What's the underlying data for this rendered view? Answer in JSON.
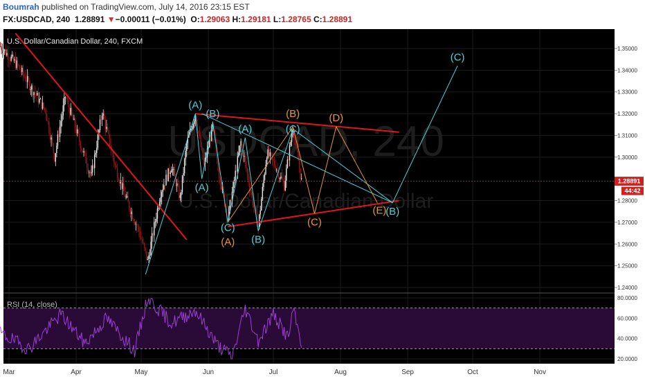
{
  "header": {
    "author": "Boumrah",
    "published_text": " published on TradingView.com, July 14, 2016 23:15 EST",
    "symbol": "FX:USDCAD, 240",
    "last": "1.28891",
    "down_arrow": "▼",
    "change": "−0.00011 (−0.01%)",
    "open_label": "O:",
    "open": "1.29063",
    "high_label": "H:",
    "high": "1.29181",
    "low_label": "L:",
    "low": "1.28765",
    "close_label": "C:",
    "close": "1.28891"
  },
  "chart": {
    "title": "U.S. Dollar/Canadian Dollar, 240, FXCM",
    "watermark_symbol": "USDCAD, 240",
    "watermark_name": "U.S. Dollar/Canadian Dollar",
    "price_tag": "1.28891",
    "timer_tag": "44:42",
    "rsi_label": "RSI (14, close)"
  },
  "colors": {
    "background": "#000000",
    "candle_up": "#e8e8e8",
    "candle_down": "#8b1a1a",
    "trendline": "#e0161a",
    "wave_cyan": "#4fd0dc",
    "wave_orange": "#e8962c",
    "rsi_line": "#9b3fd6",
    "rsi_band": "#2a0a36",
    "price_tag": "#cc2222"
  },
  "chart_data": [
    {
      "type": "candlestick",
      "symbol": "USDCAD",
      "timeframe": "240",
      "x_ticks": [
        "Mar",
        "Apr",
        "May",
        "Jun",
        "Jul",
        "Aug",
        "Sep",
        "Oct",
        "Nov"
      ],
      "y_ticks": [
        "1.35000",
        "1.34000",
        "1.33000",
        "1.32000",
        "1.31000",
        "1.30000",
        "1.28000",
        "1.27000",
        "1.26000",
        "1.25000",
        "1.24000"
      ],
      "y_range": [
        1.235,
        1.357
      ],
      "last_price": 1.28891,
      "price_path": [
        {
          "date": "2016-02-26",
          "price": 1.351
        },
        {
          "date": "2016-03-05",
          "price": 1.342
        },
        {
          "date": "2016-03-12",
          "price": 1.331
        },
        {
          "date": "2016-03-18",
          "price": 1.321
        },
        {
          "date": "2016-03-22",
          "price": 1.3
        },
        {
          "date": "2016-03-27",
          "price": 1.328
        },
        {
          "date": "2016-04-03",
          "price": 1.306
        },
        {
          "date": "2016-04-08",
          "price": 1.291
        },
        {
          "date": "2016-04-13",
          "price": 1.321
        },
        {
          "date": "2016-04-19",
          "price": 1.296
        },
        {
          "date": "2016-04-24",
          "price": 1.281
        },
        {
          "date": "2016-04-30",
          "price": 1.266
        },
        {
          "date": "2016-05-04",
          "price": 1.252
        },
        {
          "date": "2016-05-10",
          "price": 1.284
        },
        {
          "date": "2016-05-15",
          "price": 1.296
        },
        {
          "date": "2016-05-19",
          "price": 1.281
        },
        {
          "date": "2016-05-22",
          "price": 1.306
        },
        {
          "date": "2016-05-26",
          "price": 1.32
        },
        {
          "date": "2016-05-30",
          "price": 1.296
        },
        {
          "date": "2016-06-03",
          "price": 1.314
        },
        {
          "date": "2016-06-06",
          "price": 1.292
        },
        {
          "date": "2016-06-10",
          "price": 1.272
        },
        {
          "date": "2016-06-16",
          "price": 1.307
        },
        {
          "date": "2016-06-21",
          "price": 1.282
        },
        {
          "date": "2016-06-24",
          "price": 1.268
        },
        {
          "date": "2016-06-28",
          "price": 1.302
        },
        {
          "date": "2016-07-02",
          "price": 1.296
        },
        {
          "date": "2016-07-06",
          "price": 1.287
        },
        {
          "date": "2016-07-10",
          "price": 1.314
        },
        {
          "date": "2016-07-14",
          "price": 1.2889
        }
      ],
      "trendlines": [
        {
          "name": "downtrend",
          "from": {
            "date": "2016-03-04",
            "price": 1.357
          },
          "to": {
            "date": "2016-05-22",
            "price": 1.262
          }
        },
        {
          "name": "triangle-upper",
          "from": {
            "date": "2016-05-26",
            "price": 1.32
          },
          "to": {
            "date": "2016-08-28",
            "price": 1.3115
          }
        },
        {
          "name": "triangle-lower",
          "from": {
            "date": "2016-06-10",
            "price": 1.268
          },
          "to": {
            "date": "2016-08-28",
            "price": 1.28
          }
        }
      ],
      "waves": [
        {
          "name": "cyan",
          "points": [
            {
              "date": "2016-05-03",
              "price": 1.246
            },
            {
              "date": "2016-05-26",
              "price": 1.32
            },
            {
              "date": "2016-05-29",
              "price": 1.29
            },
            {
              "date": "2016-06-03",
              "price": 1.316
            },
            {
              "date": "2016-06-10",
              "price": 1.27
            },
            {
              "date": "2016-06-18",
              "price": 1.309
            },
            {
              "date": "2016-06-24",
              "price": 1.266
            },
            {
              "date": "2016-07-10",
              "price": 1.313
            },
            {
              "date": "2016-08-25",
              "price": 1.279
            },
            {
              "date": "2016-09-24",
              "price": 1.342
            }
          ]
        },
        {
          "name": "orange",
          "points": [
            {
              "date": "2016-06-10",
              "price": 1.27
            },
            {
              "date": "2016-07-10",
              "price": 1.314
            },
            {
              "date": "2016-07-20",
              "price": 1.274
            },
            {
              "date": "2016-07-30",
              "price": 1.314
            },
            {
              "date": "2016-08-18",
              "price": 1.279
            }
          ]
        },
        {
          "name": "cyan-diagonal",
          "points": [
            {
              "date": "2016-05-29",
              "price": 1.32
            },
            {
              "date": "2016-08-25",
              "price": 1.279
            }
          ]
        }
      ],
      "wave_labels": [
        {
          "text": "(A)",
          "color": "cyan",
          "date": "2016-05-26",
          "price": 1.3225
        },
        {
          "text": "(B)",
          "color": "cyan",
          "date": "2016-06-03",
          "price": 1.3185
        },
        {
          "text": "(A)",
          "color": "cyan",
          "date": "2016-05-29",
          "price": 1.2845
        },
        {
          "text": "(A)",
          "color": "cyan",
          "date": "2016-06-18",
          "price": 1.3115
        },
        {
          "text": "(B)",
          "color": "orange",
          "date": "2016-07-10",
          "price": 1.3185
        },
        {
          "text": "(C)",
          "color": "cyan",
          "date": "2016-07-10",
          "price": 1.3115
        },
        {
          "text": "(D)",
          "color": "orange",
          "date": "2016-07-30",
          "price": 1.3165
        },
        {
          "text": "(C)",
          "color": "cyan",
          "date": "2016-06-10",
          "price": 1.266
        },
        {
          "text": "(A)",
          "color": "orange",
          "date": "2016-06-10",
          "price": 1.2595
        },
        {
          "text": "(B)",
          "color": "cyan",
          "date": "2016-06-24",
          "price": 1.2605
        },
        {
          "text": "(C)",
          "color": "orange",
          "date": "2016-07-20",
          "price": 1.2685
        },
        {
          "text": "(E)",
          "color": "orange",
          "date": "2016-08-19",
          "price": 1.274
        },
        {
          "text": "(B)",
          "color": "cyan",
          "date": "2016-08-25",
          "price": 1.2735
        },
        {
          "text": "(C)",
          "color": "cyan",
          "date": "2016-09-24",
          "price": 1.3445
        }
      ]
    },
    {
      "type": "line",
      "name": "RSI (14, close)",
      "y_ticks": [
        "80.0000",
        "60.0000",
        "40.0000",
        "20.0000"
      ],
      "y_range": [
        16,
        84
      ],
      "bands": [
        30,
        70
      ],
      "rsi_path": [
        {
          "date": "2016-02-26",
          "value": 45
        },
        {
          "date": "2016-03-10",
          "value": 30
        },
        {
          "date": "2016-03-25",
          "value": 64
        },
        {
          "date": "2016-04-05",
          "value": 35
        },
        {
          "date": "2016-04-15",
          "value": 60
        },
        {
          "date": "2016-04-28",
          "value": 28
        },
        {
          "date": "2016-05-04",
          "value": 80
        },
        {
          "date": "2016-05-15",
          "value": 55
        },
        {
          "date": "2016-05-26",
          "value": 68
        },
        {
          "date": "2016-06-05",
          "value": 34
        },
        {
          "date": "2016-06-12",
          "value": 22
        },
        {
          "date": "2016-06-18",
          "value": 70
        },
        {
          "date": "2016-06-24",
          "value": 38
        },
        {
          "date": "2016-07-01",
          "value": 64
        },
        {
          "date": "2016-07-08",
          "value": 40
        },
        {
          "date": "2016-07-10",
          "value": 68
        },
        {
          "date": "2016-07-14",
          "value": 36
        }
      ]
    }
  ]
}
